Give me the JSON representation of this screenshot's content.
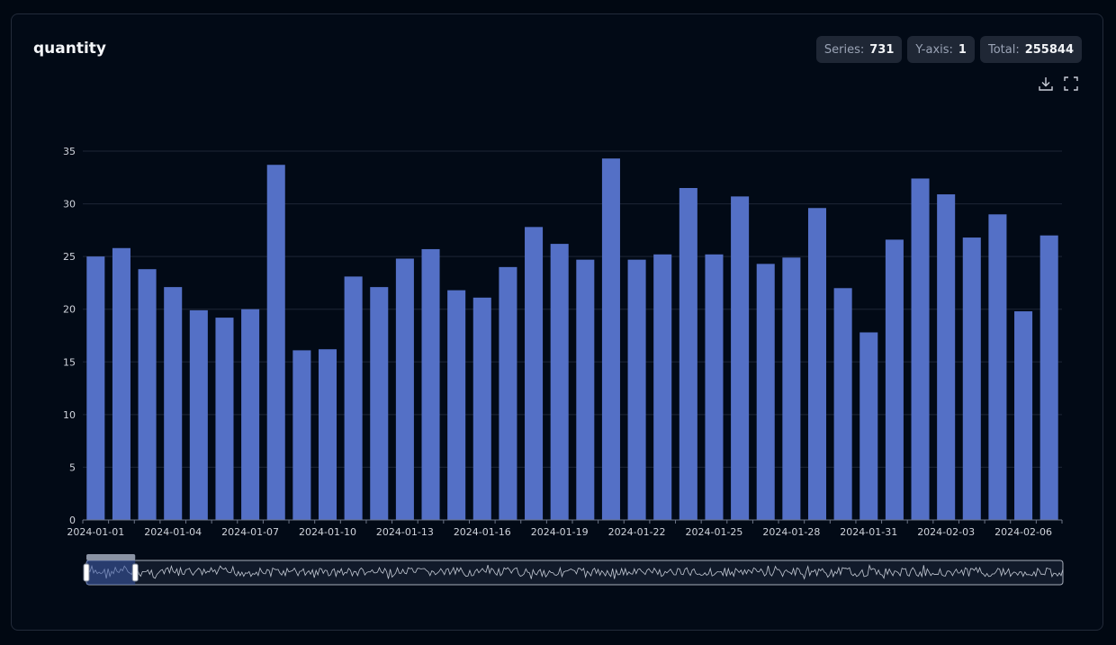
{
  "header": {
    "title": "quantity",
    "badges": [
      {
        "label": "Series:",
        "value": "731"
      },
      {
        "label": "Y-axis:",
        "value": "1"
      },
      {
        "label": "Total:",
        "value": "255844"
      }
    ]
  },
  "toolbar": {
    "download_icon": "download-icon",
    "fullscreen_icon": "fullscreen-icon"
  },
  "colors": {
    "bar": "#5470c6",
    "grid": "#1e2636",
    "axis_text": "#d0d4dc",
    "background": "#020a16"
  },
  "chart_data": {
    "type": "bar",
    "title": "quantity",
    "xlabel": "",
    "ylabel": "",
    "ylim": [
      0,
      35
    ],
    "yticks": [
      0,
      5,
      10,
      15,
      20,
      25,
      30,
      35
    ],
    "grid": true,
    "x_tick_labels": [
      "2024-01-01",
      "2024-01-04",
      "2024-01-07",
      "2024-01-10",
      "2024-01-13",
      "2024-01-16",
      "2024-01-19",
      "2024-01-22",
      "2024-01-25",
      "2024-01-28",
      "2024-01-31",
      "2024-02-03",
      "2024-02-06"
    ],
    "categories": [
      "2024-01-01",
      "2024-01-02",
      "2024-01-03",
      "2024-01-04",
      "2024-01-05",
      "2024-01-06",
      "2024-01-07",
      "2024-01-08",
      "2024-01-09",
      "2024-01-10",
      "2024-01-11",
      "2024-01-12",
      "2024-01-13",
      "2024-01-14",
      "2024-01-15",
      "2024-01-16",
      "2024-01-17",
      "2024-01-18",
      "2024-01-19",
      "2024-01-20",
      "2024-01-21",
      "2024-01-22",
      "2024-01-23",
      "2024-01-24",
      "2024-01-25",
      "2024-01-26",
      "2024-01-27",
      "2024-01-28",
      "2024-01-29",
      "2024-01-30",
      "2024-01-31",
      "2024-02-01",
      "2024-02-02",
      "2024-02-03",
      "2024-02-04",
      "2024-02-05",
      "2024-02-06",
      "2024-02-07"
    ],
    "values": [
      25.0,
      25.8,
      23.8,
      22.1,
      19.9,
      19.2,
      20.0,
      33.7,
      16.1,
      16.2,
      23.1,
      22.1,
      24.8,
      25.7,
      21.8,
      21.1,
      24.0,
      27.8,
      26.2,
      24.7,
      34.3,
      24.7,
      25.2,
      31.5,
      25.2,
      30.7,
      24.3,
      24.9,
      29.6,
      22.0,
      17.8,
      26.6,
      32.4,
      30.9,
      26.8,
      29.0,
      19.8,
      27.0
    ],
    "zoom_window": {
      "start_fraction": 0.0,
      "end_fraction": 0.05
    }
  }
}
